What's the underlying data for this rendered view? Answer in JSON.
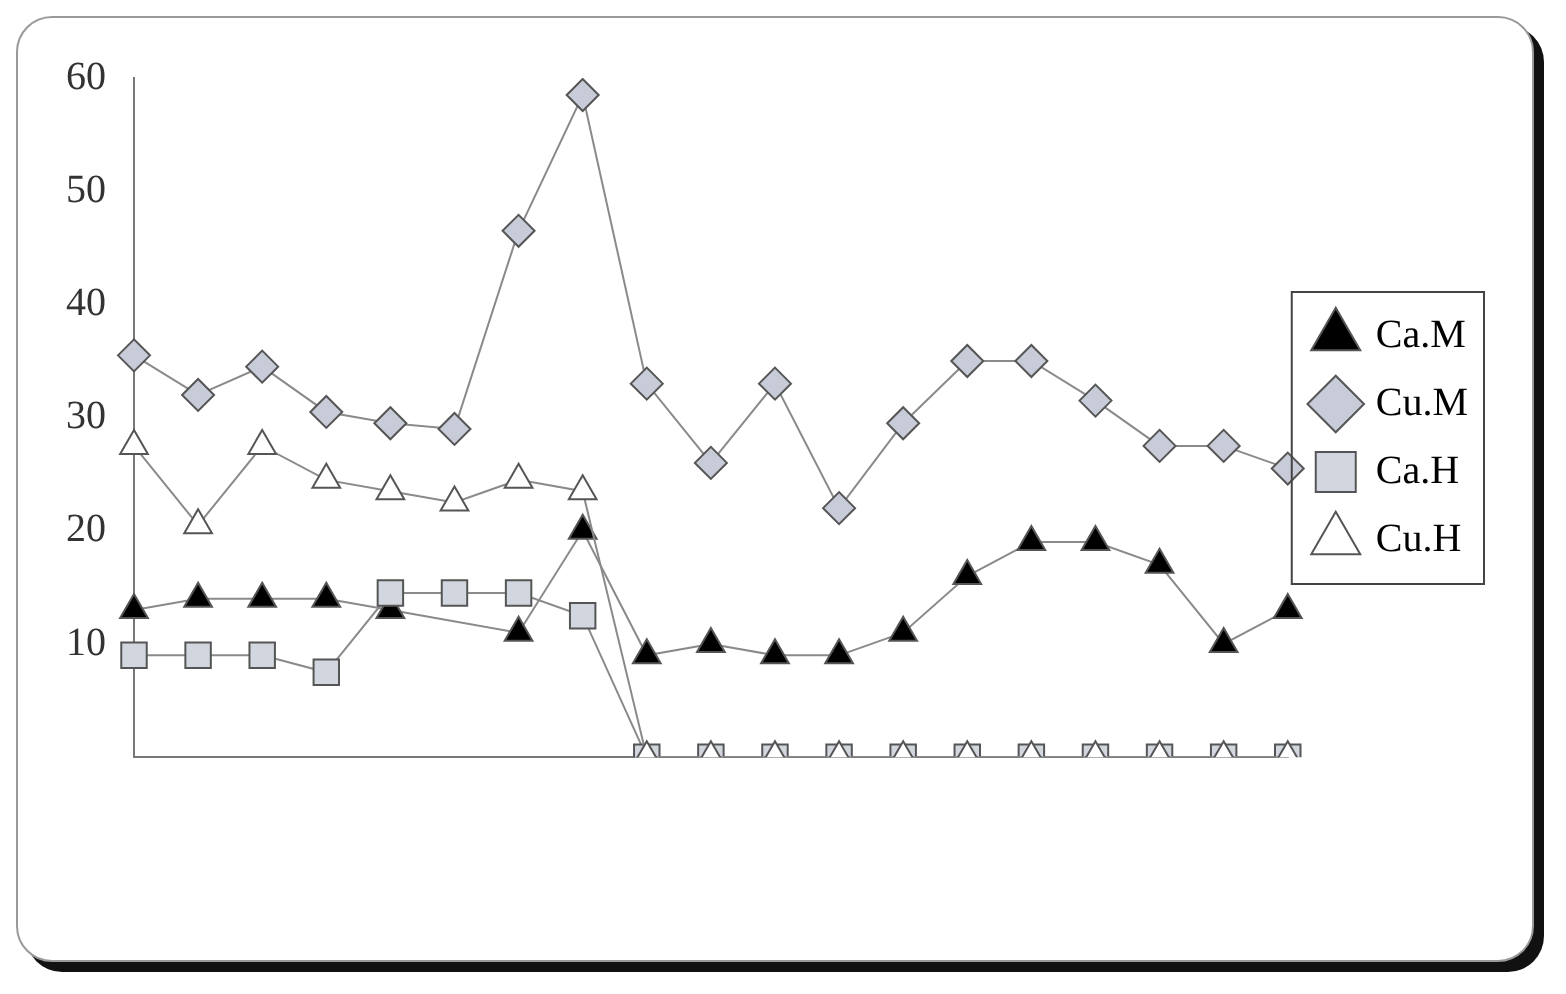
{
  "chart_data": {
    "type": "line",
    "categories": [
      null,
      null,
      null,
      null,
      null,
      null,
      null,
      null,
      null,
      null,
      null,
      null,
      null,
      null,
      null,
      null,
      null,
      null,
      null
    ],
    "series": [
      {
        "name": "Ca.M",
        "color": "#000000",
        "marker": "triangle",
        "values": [
          13,
          14,
          14,
          14,
          13,
          null,
          11,
          20,
          9,
          10,
          9,
          9,
          11,
          16,
          19,
          19,
          17,
          10,
          13
        ]
      },
      {
        "name": "Cu.M",
        "color": "#c8ccd8",
        "marker": "diamond",
        "values": [
          35.5,
          32,
          34.5,
          30.5,
          29.5,
          29,
          46.5,
          58.5,
          33,
          26,
          33,
          22,
          29.5,
          35,
          35,
          31.5,
          27.5,
          27.5,
          25.5
        ]
      },
      {
        "name": "Ca.H",
        "color": "#d2d6de",
        "marker": "square",
        "values": [
          9,
          9,
          9,
          7.5,
          14.5,
          14.5,
          14.5,
          12.5,
          0,
          0,
          0,
          0,
          0,
          0,
          0,
          0,
          0,
          0,
          0
        ]
      },
      {
        "name": "Cu.H",
        "color": "#ffffff",
        "marker": "triangle",
        "values": [
          27.5,
          20.5,
          27.5,
          24.5,
          23.5,
          22.5,
          24.5,
          23.5,
          0,
          0,
          0,
          0,
          0,
          0,
          0,
          0,
          0,
          0,
          0
        ]
      }
    ],
    "ylim": [
      0,
      60
    ],
    "yticks": [
      10,
      20,
      30,
      40,
      50,
      60
    ],
    "grid": false,
    "legend": "right"
  }
}
